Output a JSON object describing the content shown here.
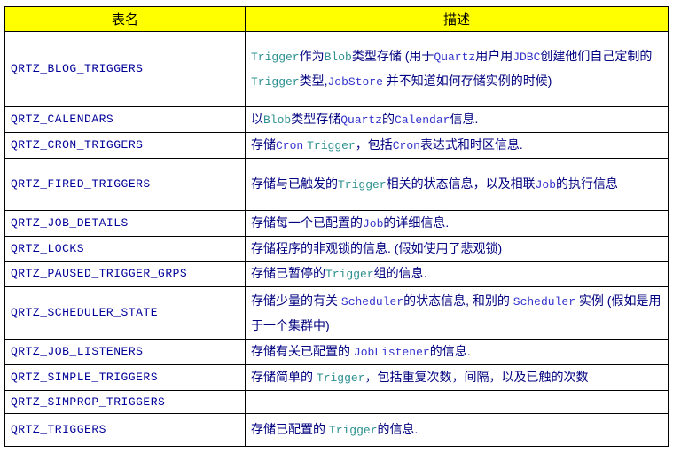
{
  "colors": {
    "header_background": "#ffff00",
    "header_text": "#000000",
    "table_name_text": "#000099",
    "chinese_text": "#000080",
    "code_blue_text": "#3333cc",
    "code_teal_text": "#2e9191",
    "border": "#000000"
  },
  "header": {
    "name_col": "表名",
    "desc_col": "描述"
  },
  "rows": [
    {
      "name": "QRTZ_BLOG_TRIGGERS",
      "desc": [
        {
          "t": "teal",
          "s": "Trigger"
        },
        {
          "t": "cn",
          "s": "作为"
        },
        {
          "t": "teal",
          "s": "Blob"
        },
        {
          "t": "cn",
          "s": "类型存储 (用于"
        },
        {
          "t": "code",
          "s": "Quartz"
        },
        {
          "t": "cn",
          "s": "用户用"
        },
        {
          "t": "code",
          "s": "JDBC"
        },
        {
          "t": "cn",
          "s": "创建他们自己定制的"
        },
        {
          "t": "teal",
          "s": "Trigger"
        },
        {
          "t": "cn",
          "s": "类型,"
        },
        {
          "t": "code",
          "s": "JobStore"
        },
        {
          "t": "cn",
          "s": " 并不知道如何存储实例的时候)"
        }
      ]
    },
    {
      "name": "QRTZ_CALENDARS",
      "desc": [
        {
          "t": "cn",
          "s": "以"
        },
        {
          "t": "teal",
          "s": "Blob"
        },
        {
          "t": "cn",
          "s": "类型存储"
        },
        {
          "t": "code",
          "s": "Quartz"
        },
        {
          "t": "cn",
          "s": "的"
        },
        {
          "t": "code",
          "s": "Calendar"
        },
        {
          "t": "cn",
          "s": "信息."
        }
      ]
    },
    {
      "name": "QRTZ_CRON_TRIGGERS",
      "desc": [
        {
          "t": "cn",
          "s": "存储"
        },
        {
          "t": "code",
          "s": "Cron"
        },
        {
          "t": "cn",
          "s": " "
        },
        {
          "t": "teal",
          "s": "Trigger"
        },
        {
          "t": "cn",
          "s": "，包括"
        },
        {
          "t": "code",
          "s": "Cron"
        },
        {
          "t": "cn",
          "s": "表达式和时区信息."
        }
      ]
    },
    {
      "name": "QRTZ_FIRED_TRIGGERS",
      "desc": [
        {
          "t": "cn",
          "s": "存储与已触发的"
        },
        {
          "t": "teal",
          "s": "Trigger"
        },
        {
          "t": "cn",
          "s": "相关的状态信息，以及相联"
        },
        {
          "t": "code",
          "s": "Job"
        },
        {
          "t": "cn",
          "s": "的执行信息"
        }
      ]
    },
    {
      "name": "QRTZ_JOB_DETAILS",
      "desc": [
        {
          "t": "cn",
          "s": "存储每一个已配置的"
        },
        {
          "t": "code",
          "s": "Job"
        },
        {
          "t": "cn",
          "s": "的详细信息."
        }
      ]
    },
    {
      "name": "QRTZ_LOCKS",
      "desc": [
        {
          "t": "cn",
          "s": "存储程序的非观锁的信息. (假如使用了悲观锁)"
        }
      ]
    },
    {
      "name": "QRTZ_PAUSED_TRIGGER_GRPS",
      "desc": [
        {
          "t": "cn",
          "s": "存储已暂停的"
        },
        {
          "t": "teal",
          "s": "Trigger"
        },
        {
          "t": "cn",
          "s": "组的信息."
        }
      ]
    },
    {
      "name": "QRTZ_SCHEDULER_STATE",
      "desc": [
        {
          "t": "cn",
          "s": "存储少量的有关 "
        },
        {
          "t": "code",
          "s": "Scheduler"
        },
        {
          "t": "cn",
          "s": "的状态信息, 和别的 "
        },
        {
          "t": "code",
          "s": "Scheduler"
        },
        {
          "t": "cn",
          "s": " 实例 (假如是用于一个集群中)"
        }
      ]
    },
    {
      "name": "QRTZ_JOB_LISTENERS",
      "desc": [
        {
          "t": "cn",
          "s": "存储有关已配置的 "
        },
        {
          "t": "code",
          "s": "JobListener"
        },
        {
          "t": "cn",
          "s": "的信息."
        }
      ]
    },
    {
      "name": "QRTZ_SIMPLE_TRIGGERS",
      "desc": [
        {
          "t": "cn",
          "s": "存储简单的 "
        },
        {
          "t": "teal",
          "s": "Trigger"
        },
        {
          "t": "cn",
          "s": "，包括重复次数，间隔，以及已触的次数"
        }
      ]
    },
    {
      "name": "QRTZ_SIMPROP_TRIGGERS",
      "desc": []
    },
    {
      "name": "QRTZ_TRIGGERS",
      "desc": [
        {
          "t": "cn",
          "s": "存储已配置的 "
        },
        {
          "t": "teal",
          "s": "Trigger"
        },
        {
          "t": "cn",
          "s": "的信息."
        }
      ]
    }
  ]
}
